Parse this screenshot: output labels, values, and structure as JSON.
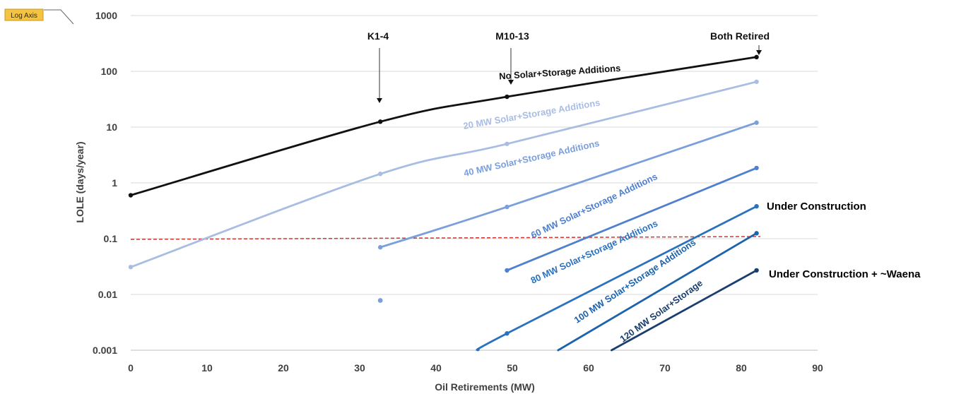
{
  "chart_data": {
    "type": "line",
    "xlabel": "Oil Retirements (MW)",
    "ylabel": "LOLE (days/year)",
    "xlim": [
      0,
      90
    ],
    "ylim": [
      0.001,
      1000
    ],
    "yscale": "log",
    "xticks": [
      "0",
      "10",
      "20",
      "30",
      "40",
      "50",
      "60",
      "70",
      "80",
      "90"
    ],
    "yticks": [
      "0.001",
      "0.01",
      "0.1",
      "1",
      "10",
      "100",
      "1000"
    ],
    "grid": "horizontal",
    "badge": "Log Axis",
    "threshold": {
      "y": 0.1,
      "color": "#e0302a"
    },
    "annotations": [
      {
        "label": "K1-4",
        "x": 32.7
      },
      {
        "label": "M10-13",
        "x": 49.3
      },
      {
        "label": "Both Retired",
        "x": 82
      }
    ],
    "side_labels": [
      {
        "text": "Under Construction",
        "color": "#3cb44b"
      },
      {
        "text": "Under Construction + ~Waena",
        "color": "#3cb44b"
      }
    ],
    "series": [
      {
        "name": "No Solar+Storage Additions",
        "color": "#111111",
        "points": [
          [
            0,
            0.6
          ],
          [
            32.7,
            12.5
          ],
          [
            49.3,
            35
          ],
          [
            82,
            180
          ]
        ]
      },
      {
        "name": "20 MW Solar+Storage Additions",
        "color": "#a9bde3",
        "points": [
          [
            0,
            0.031
          ],
          [
            32.7,
            1.45
          ],
          [
            49.3,
            5.0
          ],
          [
            82,
            65
          ]
        ]
      },
      {
        "name": "40 MW Solar+Storage Additions",
        "color": "#7b9fdb",
        "points": [
          [
            32.7,
            0.07
          ],
          [
            49.3,
            0.37
          ],
          [
            82,
            12
          ]
        ],
        "extra_points": [
          [
            32.7,
            0.0078
          ]
        ]
      },
      {
        "name": "60 MW Solar+Storage Additions",
        "color": "#4f7fcf",
        "points": [
          [
            49.3,
            0.027
          ],
          [
            82,
            1.85
          ]
        ]
      },
      {
        "name": "80 MW Solar+Storage Additions",
        "color": "#2a72bf",
        "points": [
          [
            45.5,
            0.001
          ],
          [
            49.3,
            0.002
          ],
          [
            82,
            0.38
          ]
        ]
      },
      {
        "name": "100 MW Solar+Storage Additions",
        "color": "#1b63ad",
        "points": [
          [
            56,
            0.001
          ],
          [
            82,
            0.125
          ]
        ]
      },
      {
        "name": "120 MW Solar+Storage",
        "color": "#1a3f6e",
        "points": [
          [
            63,
            0.001
          ],
          [
            82,
            0.027
          ]
        ]
      }
    ]
  }
}
